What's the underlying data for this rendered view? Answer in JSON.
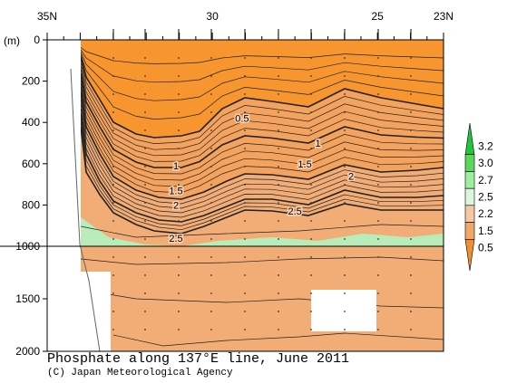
{
  "chart_data": {
    "type": "contour",
    "title": "Phosphate along 137°E line, June 2011",
    "credit": "(C) Japan Meteorological Agency",
    "y_unit_label": "(m)",
    "x_ticks": [
      "35N",
      "30",
      "25",
      "23N"
    ],
    "x_tick_values": [
      35,
      30,
      25,
      23
    ],
    "x_range": [
      35,
      23
    ],
    "y_ticks": [
      "0",
      "200",
      "400",
      "600",
      "800",
      "1000",
      "1500",
      "2000"
    ],
    "y_tick_values": [
      0,
      200,
      400,
      600,
      800,
      1000,
      1500,
      2000
    ],
    "y_range": [
      0,
      2000
    ],
    "y_axis_break_at": 1000,
    "contour_labels": [
      {
        "text": "0.5",
        "lat": 29.1,
        "depth": 380
      },
      {
        "text": "1",
        "lat": 31.1,
        "depth": 610
      },
      {
        "text": "1",
        "lat": 26.8,
        "depth": 500
      },
      {
        "text": "1.5",
        "lat": 31.1,
        "depth": 730
      },
      {
        "text": "1.5",
        "lat": 27.2,
        "depth": 600
      },
      {
        "text": "2",
        "lat": 31.1,
        "depth": 800
      },
      {
        "text": "2",
        "lat": 25.8,
        "depth": 660
      },
      {
        "text": "2.5",
        "lat": 27.5,
        "depth": 830
      },
      {
        "text": "2.5",
        "lat": 31.1,
        "depth": 960
      }
    ],
    "legend": {
      "labels": [
        "3.2",
        "3.0",
        "2.7",
        "2.5",
        "2.2",
        "1.5",
        "0.5"
      ],
      "levels": [
        3.2,
        3.0,
        2.7,
        2.5,
        2.2,
        1.5,
        0.5
      ],
      "colors": [
        "#22c43a",
        "#5ad85a",
        "#9ef09e",
        "#dcf6dc",
        "#f6c6a6",
        "#f0a868",
        "#f0902c"
      ]
    },
    "fill_colors": {
      "orange": "#f7952f",
      "light_orange": "#f2ad76",
      "pale_orange": "#f9d2b6",
      "pale_green": "#d2f2d2",
      "mid_green": "#b8ecb8",
      "green": "#8ff58f"
    }
  }
}
